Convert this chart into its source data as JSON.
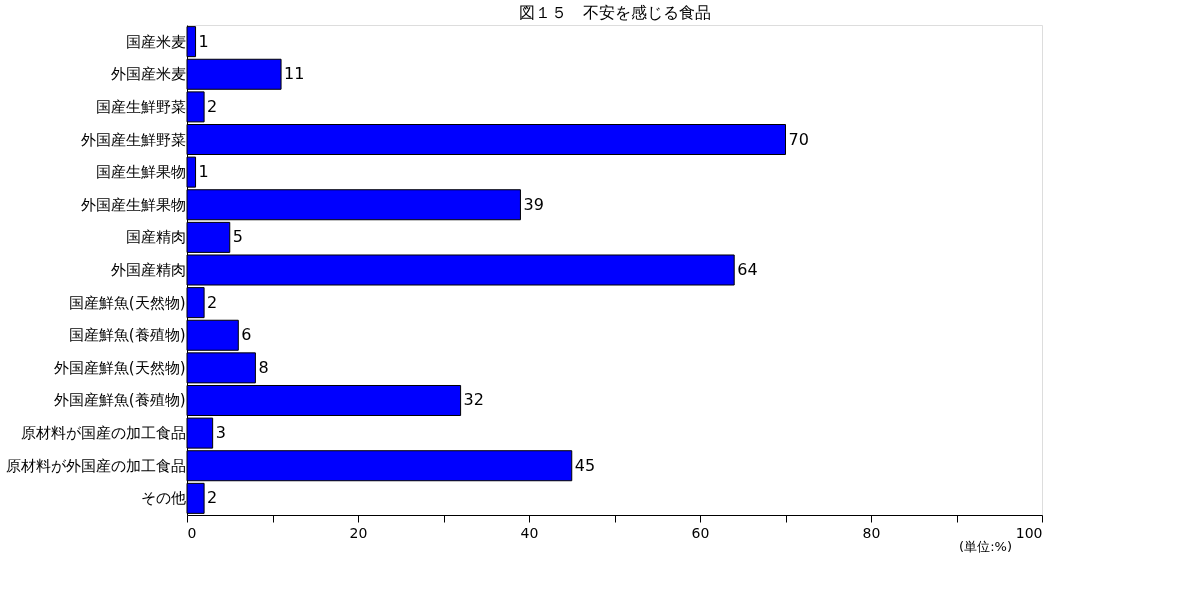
{
  "chart_data": {
    "type": "bar",
    "orientation": "horizontal",
    "title": "図１５　不安を感じる食品",
    "categories": [
      "国産米麦",
      "外国産米麦",
      "国産生鮮野菜",
      "外国産生鮮野菜",
      "国産生鮮果物",
      "外国産生鮮果物",
      "国産精肉",
      "外国産精肉",
      "国産鮮魚(天然物)",
      "国産鮮魚(養殖物)",
      "外国産鮮魚(天然物)",
      "外国産鮮魚(養殖物)",
      "原材料が国産の加工食品",
      "原材料が外国産の加工食品",
      "その他"
    ],
    "values": [
      1,
      11,
      2,
      70,
      1,
      39,
      5,
      64,
      2,
      6,
      8,
      32,
      3,
      45,
      2
    ],
    "color": "#0000ff",
    "data_labels": true,
    "xlim": [
      0,
      100
    ],
    "xticks": [
      0,
      {
        "value": 10,
        "label": null
      },
      20,
      {
        "value": 30,
        "label": null
      },
      40,
      {
        "value": 50,
        "label": null
      },
      60,
      {
        "value": 70,
        "label": null
      },
      80,
      {
        "value": 90,
        "label": null
      },
      100
    ],
    "grid": false,
    "annotations": [
      "(単位:%)"
    ]
  }
}
